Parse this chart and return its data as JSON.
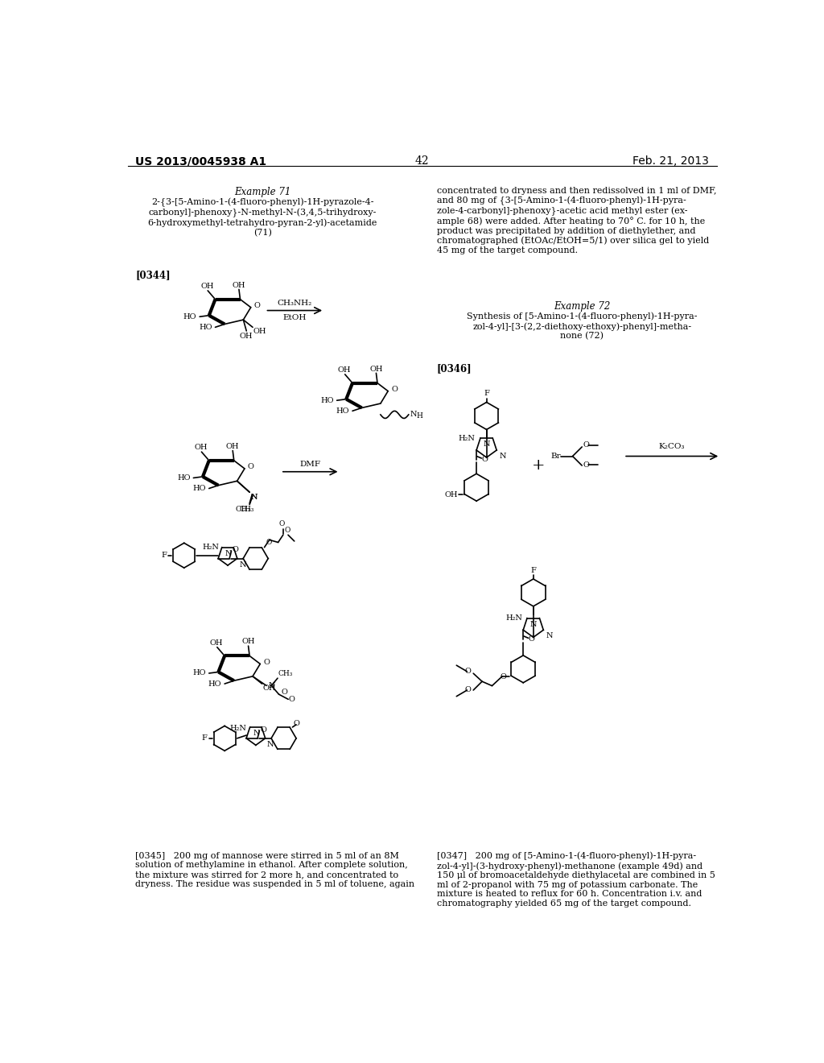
{
  "background_color": "#ffffff",
  "header_left": "US 2013/0045938 A1",
  "header_right": "Feb. 21, 2013",
  "page_number": "42",
  "example71_title": "Example 71",
  "example71_compound": "2-{3-[5-Amino-1-(4-fluoro-phenyl)-1H-pyrazole-4-\ncarbonyl]-phenoxy}-N-methyl-N-(3,4,5-trihydroxy-\n6-hydroxymethyl-tetrahydro-pyran-2-yl)-acetamide\n(71)",
  "example72_title": "Example 72",
  "example72_compound": "Synthesis of [5-Amino-1-(4-fluoro-phenyl)-1H-pyra-\nzol-4-yl]-[3-(2,2-diethoxy-ethoxy)-phenyl]-metha-\nnone (72)",
  "para0344": "[0344]",
  "para0346": "[0346]",
  "para0345_right_col": "concentrated to dryness and then redissolved in 1 ml of DMF,\nand 80 mg of {3-[5-Amino-1-(4-fluoro-phenyl)-1H-pyra-\nzole-4-carbonyl]-phenoxy}-acetic acid methyl ester (ex-\nample 68) were added. After heating to 70° C. for 10 h, the\nproduct was precipitated by addition of diethylether, and\nchromatographed (EtOAc/EtOH=5/1) over silica gel to yield\n45 mg of the target compound.",
  "para0345_left": "[0345]   200 mg of mannose were stirred in 5 ml of an 8M\nsolution of methylamine in ethanol. After complete solution,\nthe mixture was stirred for 2 more h, and concentrated to\ndryness. The residue was suspended in 5 ml of toluene, again",
  "para0347": "[0347]   200 mg of [5-Amino-1-(4-fluoro-phenyl)-1H-pyra-\nzol-4-yl]-(3-hydroxy-phenyl)-methanone (example 49d) and\n150 μl of bromoacetaldehyde diethylacetal are combined in 5\nml of 2-propanol with 75 mg of potassium carbonate. The\nmixture is heated to reflux for 60 h. Concentration i.v. and\nchromatography yielded 65 mg of the target compound."
}
